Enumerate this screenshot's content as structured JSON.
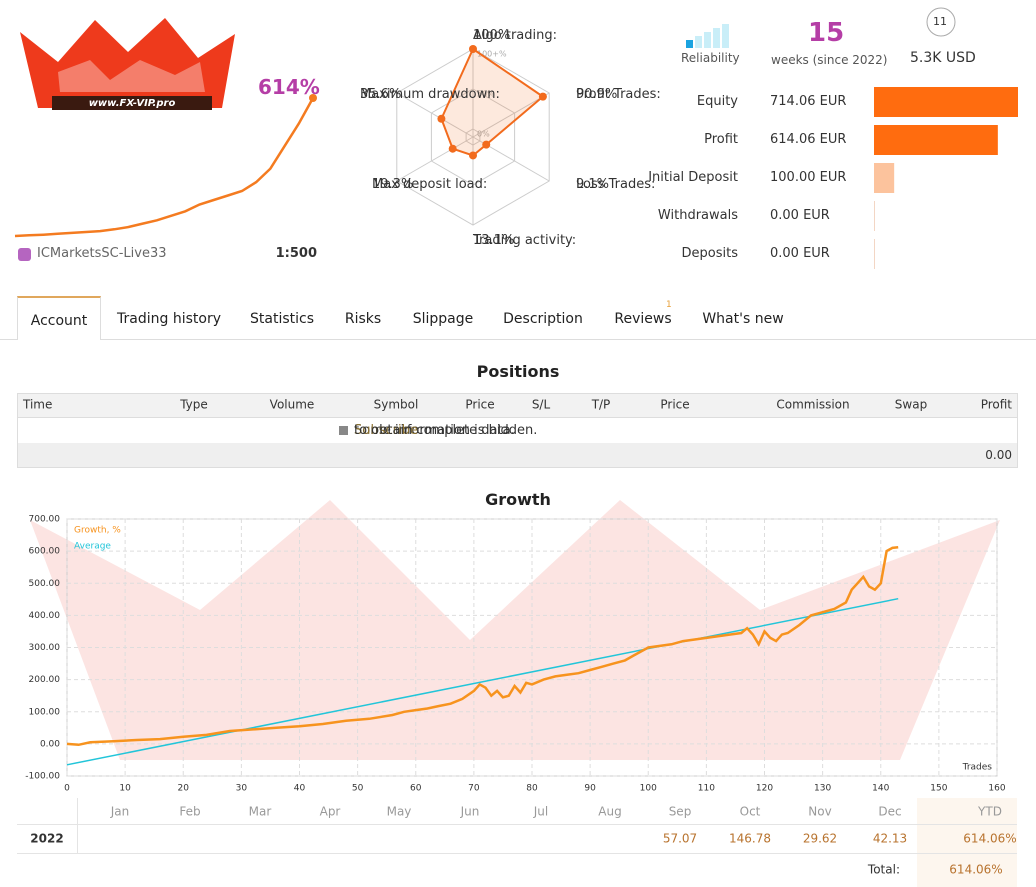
{
  "header": {
    "logo_text": "www.FX-VIP.pro",
    "gain": "614%",
    "broker": "ICMarketsSC-Live33",
    "leverage": "1:500",
    "reliability_label": "Reliability",
    "weeks": "15",
    "weeks_label": "weeks (since 2022)",
    "subscribers": "11",
    "funds": "5.3K USD"
  },
  "stats": [
    {
      "label": "Equity",
      "value": 714.06,
      "value_label": "714.06 EUR",
      "color": "#ff6c0f"
    },
    {
      "label": "Profit",
      "value": 614.06,
      "value_label": "614.06 EUR",
      "color": "#ff6c0f"
    },
    {
      "label": "Initial Deposit",
      "value": 100.0,
      "value_label": "100.00 EUR",
      "color": "#fcc39d"
    },
    {
      "label": "Withdrawals",
      "value": 0,
      "value_label": "0.00 EUR",
      "color": "#fcc39d"
    },
    {
      "label": "Deposits",
      "value": 0,
      "value_label": "0.00 EUR",
      "color": "#fcc39d"
    }
  ],
  "tabs": {
    "items": [
      "Account",
      "Trading history",
      "Statistics",
      "Risks",
      "Slippage",
      "Description",
      "Reviews",
      "What's new"
    ],
    "active": 0,
    "reviews_badge": "1"
  },
  "positions": {
    "title": "Positions",
    "columns": [
      "Time",
      "Type",
      "Volume",
      "Symbol",
      "Price",
      "S/L",
      "T/P",
      "Price",
      "Commission",
      "Swap",
      "Profit"
    ],
    "notice": [
      "Some information is hidden.",
      "Subscribe",
      "to obtain complete data."
    ],
    "total": "0.00"
  },
  "chart_data": [
    {
      "type": "line",
      "color": "#f47b20",
      "values": [
        0,
        3,
        6,
        10,
        14,
        18,
        22,
        30,
        40,
        55,
        70,
        90,
        110,
        140,
        160,
        180,
        200,
        240,
        300,
        400,
        500,
        614
      ]
    },
    {
      "type": "radar",
      "color": "#f26b1d",
      "categories": [
        "Algo trading:",
        "Profit Trades:",
        "Loss Trades:",
        "Trading activity:",
        "Max deposit load:",
        "Maximum drawdown:"
      ],
      "values": [
        100,
        90.9,
        9.1,
        13.1,
        19.3,
        35.6
      ],
      "value_labels": [
        "100%",
        "90.9%",
        "9.1%",
        "13.1%",
        "19.3%",
        "35.6%"
      ],
      "rlim": [
        0,
        100
      ],
      "rticks": [
        {
          "value": 0,
          "label": "0%"
        },
        {
          "value": 50,
          "label": "50%"
        },
        {
          "value": 100,
          "label": "100+%"
        }
      ]
    },
    {
      "type": "line",
      "title": "Growth",
      "x_label": "Trades",
      "grid": true,
      "xlim": [
        0,
        160
      ],
      "xticks": [
        0,
        10,
        20,
        30,
        40,
        50,
        60,
        70,
        80,
        90,
        100,
        110,
        120,
        130,
        140,
        150,
        160
      ],
      "ylim": [
        -100,
        700
      ],
      "yticks": [
        {
          "value": -100,
          "label": "-100.00"
        },
        {
          "value": 0,
          "label": "0.00"
        },
        {
          "value": 100,
          "label": "100.00"
        },
        {
          "value": 200,
          "label": "200.00"
        },
        {
          "value": 300,
          "label": "300.00"
        },
        {
          "value": 400,
          "label": "400.00"
        },
        {
          "value": 500,
          "label": "500.00"
        },
        {
          "value": 600,
          "label": "600.00"
        },
        {
          "value": 700,
          "label": "700.00"
        }
      ],
      "series": [
        {
          "name": "Growth, %",
          "color": "#f7931e",
          "x": [
            0,
            2,
            4,
            8,
            12,
            16,
            20,
            24,
            28,
            32,
            36,
            40,
            44,
            48,
            52,
            56,
            58,
            60,
            62,
            64,
            66,
            68,
            70,
            71,
            72,
            73,
            74,
            75,
            76,
            77,
            78,
            79,
            80,
            82,
            84,
            86,
            88,
            90,
            92,
            94,
            96,
            98,
            100,
            102,
            104,
            106,
            108,
            110,
            112,
            114,
            116,
            117,
            118,
            119,
            120,
            121,
            122,
            123,
            124,
            126,
            128,
            130,
            132,
            134,
            135,
            136,
            137,
            138,
            139,
            140,
            141,
            142,
            143
          ],
          "values": [
            0,
            -3,
            5,
            8,
            12,
            15,
            22,
            28,
            40,
            45,
            50,
            55,
            62,
            72,
            78,
            90,
            100,
            105,
            110,
            118,
            125,
            140,
            165,
            185,
            175,
            150,
            165,
            145,
            150,
            180,
            160,
            190,
            185,
            200,
            210,
            215,
            220,
            230,
            240,
            250,
            260,
            280,
            300,
            305,
            310,
            320,
            325,
            330,
            335,
            340,
            345,
            360,
            340,
            310,
            350,
            330,
            320,
            340,
            345,
            370,
            400,
            410,
            420,
            440,
            480,
            500,
            520,
            490,
            480,
            500,
            600,
            610,
            612
          ]
        },
        {
          "name": "Average",
          "color": "#22c5d9",
          "x": [
            0,
            143
          ],
          "values": [
            -65,
            452
          ]
        }
      ]
    }
  ],
  "monthly": {
    "months": [
      "Jan",
      "Feb",
      "Mar",
      "Apr",
      "May",
      "Jun",
      "Jul",
      "Aug",
      "Sep",
      "Oct",
      "Nov",
      "Dec"
    ],
    "ytd_label": "YTD",
    "rows": [
      {
        "year": "2022",
        "values": [
          null,
          null,
          null,
          null,
          null,
          null,
          null,
          null,
          57.07,
          146.78,
          29.62,
          42.13
        ],
        "ytd": "614.06%"
      }
    ],
    "total_label": "Total:",
    "total": "614.06%"
  }
}
